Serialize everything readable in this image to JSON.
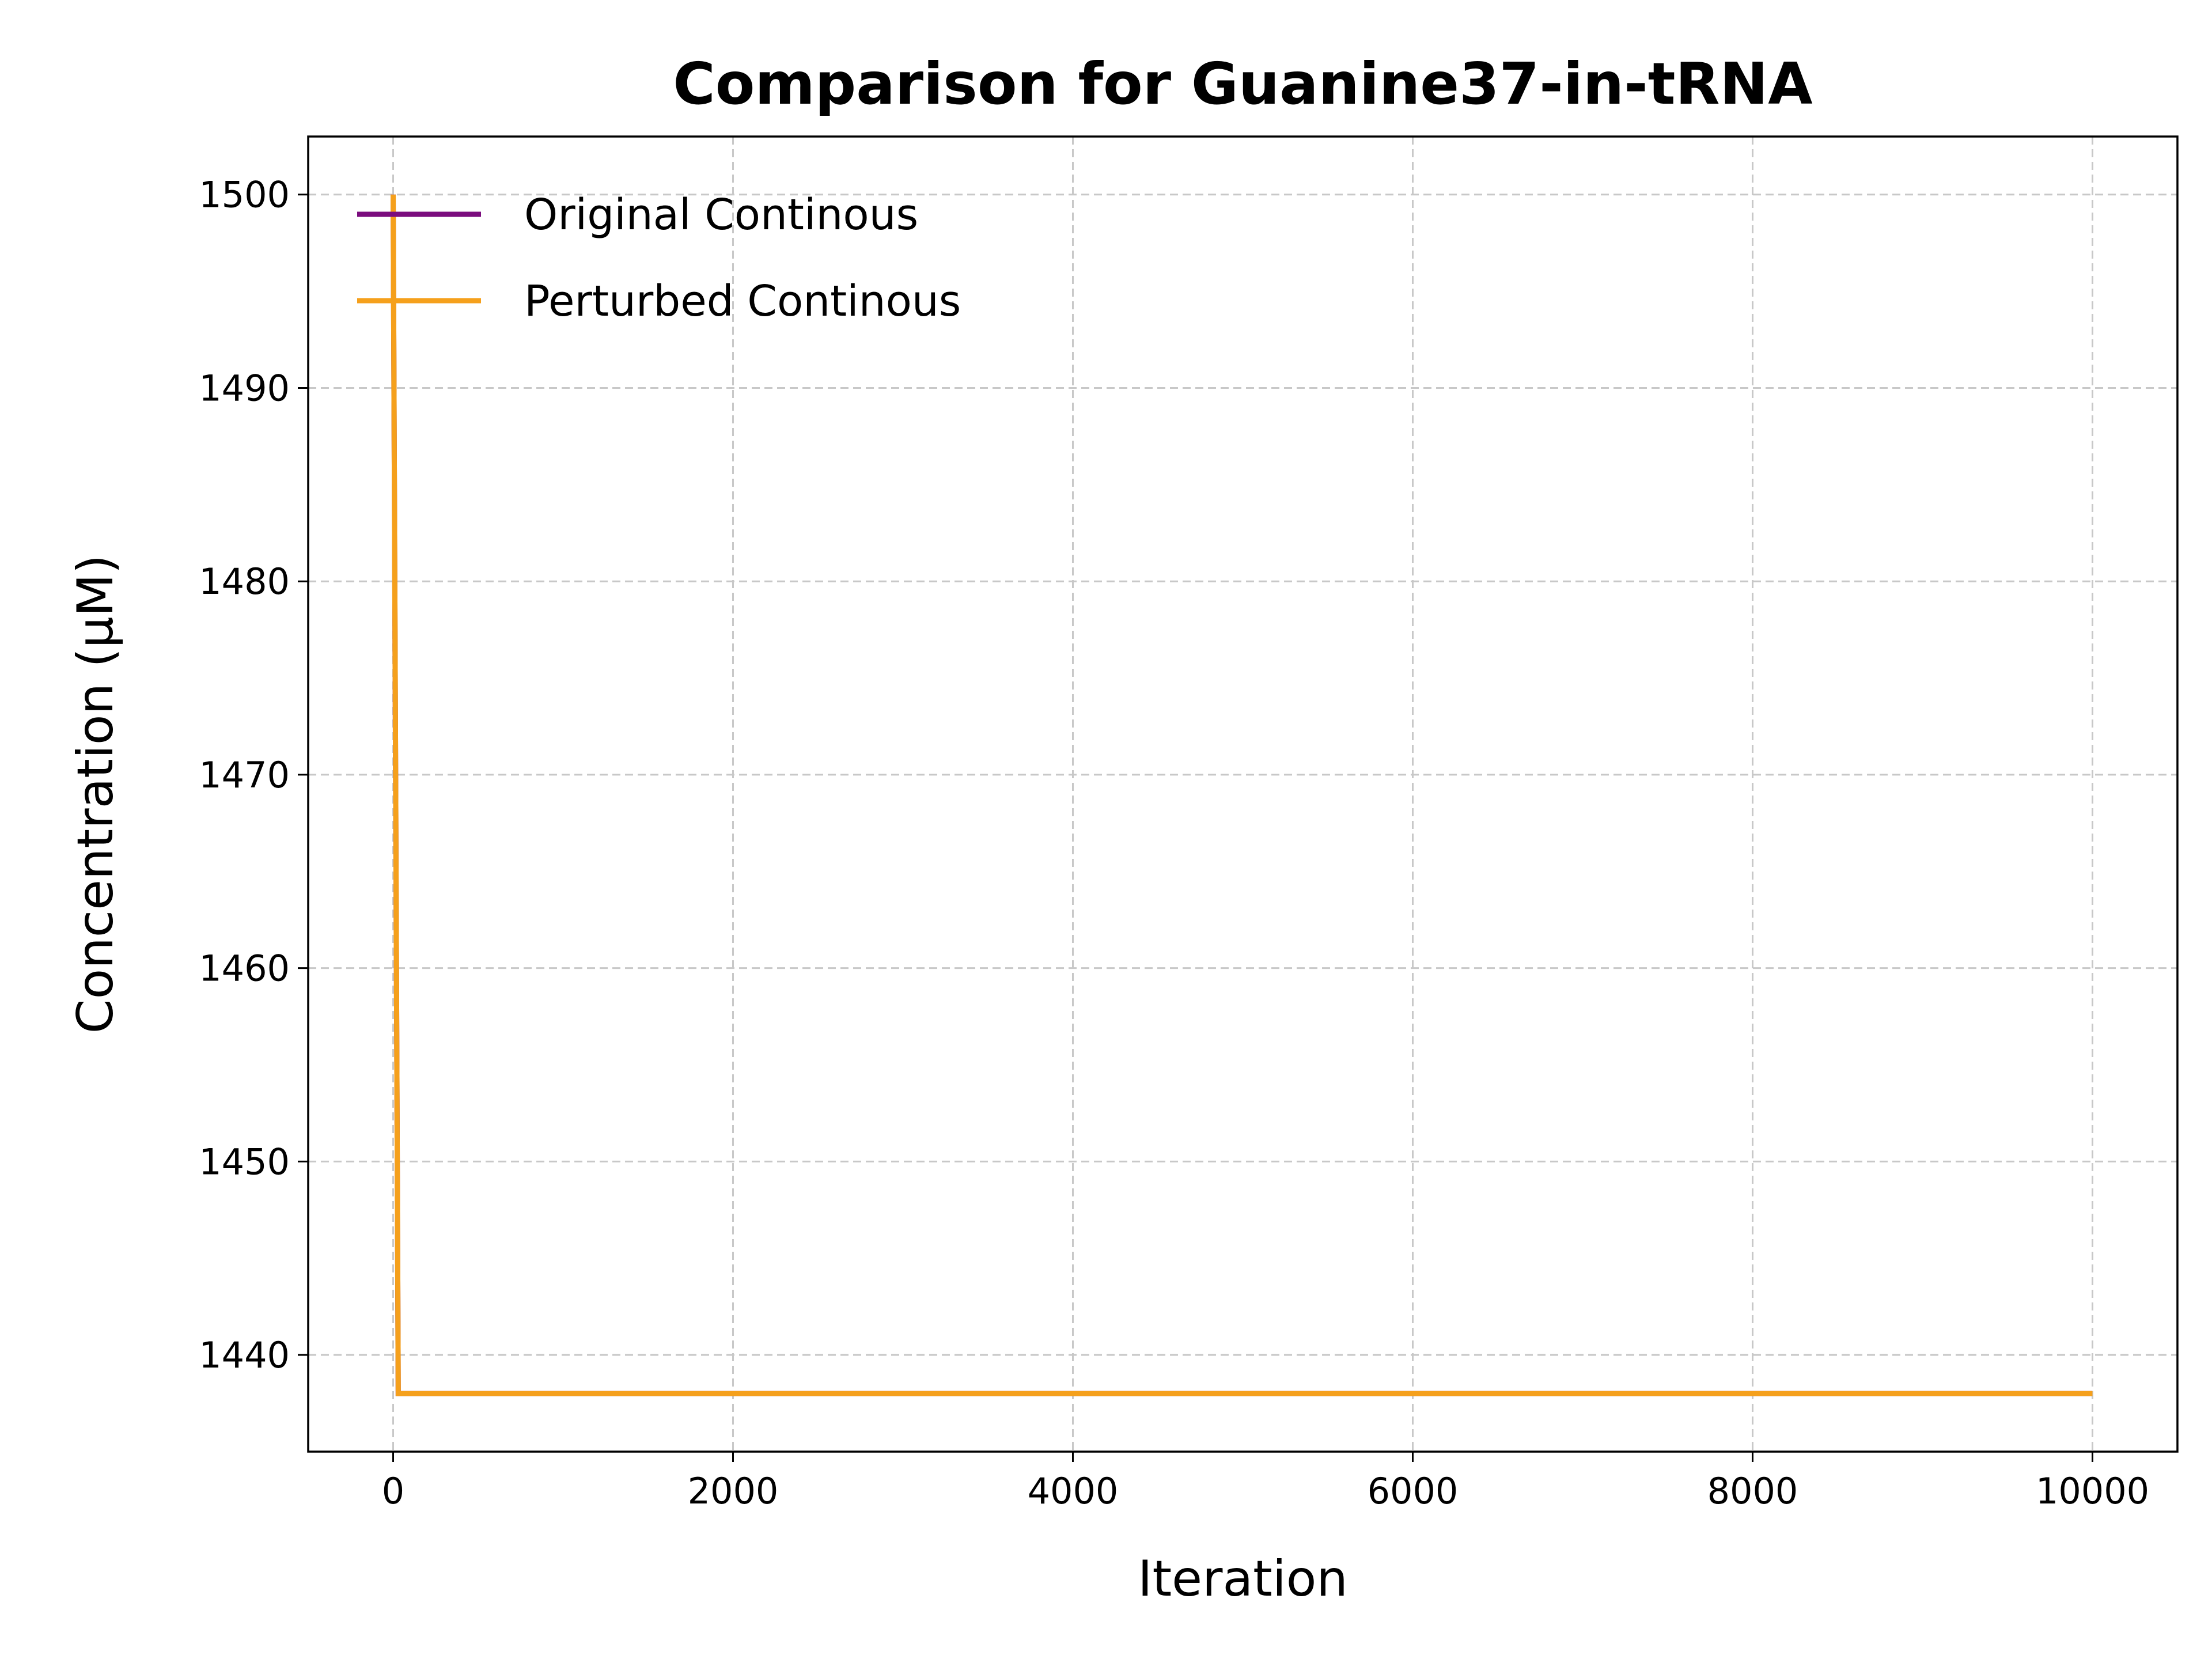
{
  "chart_data": {
    "type": "line",
    "title": "Comparison for Guanine37-in-tRNA",
    "xlabel": "Iteration",
    "ylabel": "Concentration (μM)",
    "xlim": [
      -500,
      10500
    ],
    "ylim": [
      1435,
      1503
    ],
    "xticks": [
      0,
      2000,
      4000,
      6000,
      8000,
      10000
    ],
    "xtick_labels": [
      "0",
      "2000",
      "4000",
      "6000",
      "8000",
      "10000"
    ],
    "yticks": [
      1440,
      1450,
      1460,
      1470,
      1480,
      1490,
      1500
    ],
    "ytick_labels": [
      "1440",
      "1450",
      "1460",
      "1470",
      "1480",
      "1490",
      "1500"
    ],
    "grid": true,
    "legend_position": "top-left",
    "series": [
      {
        "name": "Original Continous",
        "color": "#7b0d7e",
        "x": [
          0,
          30,
          10000
        ],
        "y": [
          1500,
          1438,
          1438
        ]
      },
      {
        "name": "Perturbed Continous",
        "color": "#f5a01c",
        "x": [
          0,
          30,
          10000
        ],
        "y": [
          1500,
          1438,
          1438
        ]
      }
    ]
  }
}
